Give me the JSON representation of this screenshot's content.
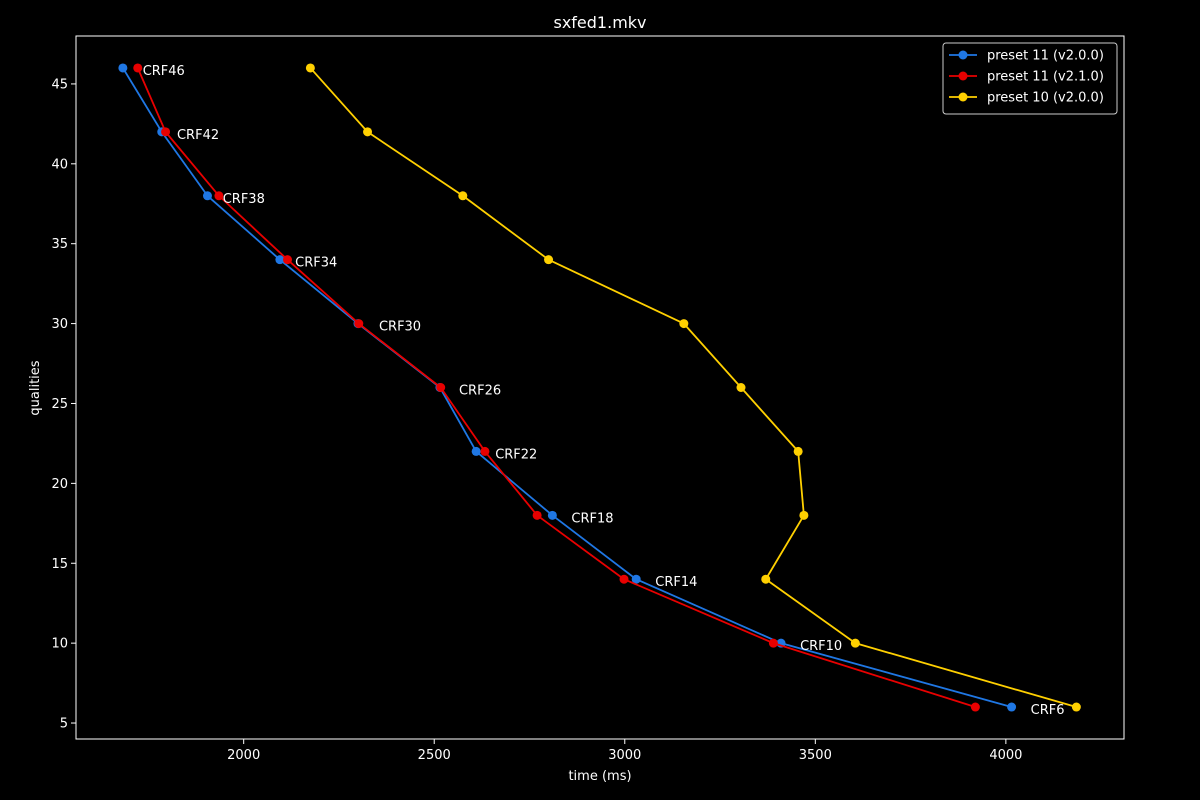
{
  "chart_data": {
    "type": "line",
    "title": "sxfed1.mkv",
    "xlabel": "time (ms)",
    "ylabel": "qualities",
    "xlim": [
      1560,
      4310
    ],
    "ylim": [
      4,
      48
    ],
    "x_ticks": [
      2000,
      2500,
      3000,
      3500,
      4000
    ],
    "y_ticks": [
      5,
      10,
      15,
      20,
      25,
      30,
      35,
      40,
      45
    ],
    "grid": false,
    "legend_position": "top-right",
    "series": [
      {
        "name": "preset 11 (v2.0.0)",
        "color": "#1f77e4",
        "points": [
          {
            "x": 1683,
            "y": 46
          },
          {
            "x": 1785,
            "y": 42
          },
          {
            "x": 1905,
            "y": 38
          },
          {
            "x": 2095,
            "y": 34
          },
          {
            "x": 2300,
            "y": 30
          },
          {
            "x": 2515,
            "y": 26
          },
          {
            "x": 2610,
            "y": 22
          },
          {
            "x": 2810,
            "y": 18
          },
          {
            "x": 3030,
            "y": 14
          },
          {
            "x": 3410,
            "y": 10
          },
          {
            "x": 4015,
            "y": 6
          }
        ]
      },
      {
        "name": "preset 11 (v2.1.0)",
        "color": "#e80000",
        "points": [
          {
            "x": 1722,
            "y": 46
          },
          {
            "x": 1795,
            "y": 42
          },
          {
            "x": 1935,
            "y": 38
          },
          {
            "x": 2115,
            "y": 34
          },
          {
            "x": 2302,
            "y": 30
          },
          {
            "x": 2517,
            "y": 26
          },
          {
            "x": 2633,
            "y": 22
          },
          {
            "x": 2770,
            "y": 18
          },
          {
            "x": 2998,
            "y": 14
          },
          {
            "x": 3390,
            "y": 10
          },
          {
            "x": 3920,
            "y": 6
          }
        ]
      },
      {
        "name": "preset 10 (v2.0.0)",
        "color": "#ffd000",
        "points": [
          {
            "x": 2175,
            "y": 46
          },
          {
            "x": 2325,
            "y": 42
          },
          {
            "x": 2575,
            "y": 38
          },
          {
            "x": 2800,
            "y": 34
          },
          {
            "x": 3155,
            "y": 30
          },
          {
            "x": 3305,
            "y": 26
          },
          {
            "x": 3455,
            "y": 22
          },
          {
            "x": 3470,
            "y": 18
          },
          {
            "x": 3370,
            "y": 14
          },
          {
            "x": 3605,
            "y": 10
          },
          {
            "x": 4185,
            "y": 6
          }
        ]
      }
    ],
    "annotations": [
      {
        "text": "CRF46",
        "x": 1735,
        "y": 46
      },
      {
        "text": "CRF42",
        "x": 1825,
        "y": 42
      },
      {
        "text": "CRF38",
        "x": 1945,
        "y": 38
      },
      {
        "text": "CRF34",
        "x": 2135,
        "y": 34
      },
      {
        "text": "CRF30",
        "x": 2355,
        "y": 30
      },
      {
        "text": "CRF26",
        "x": 2565,
        "y": 26
      },
      {
        "text": "CRF22",
        "x": 2660,
        "y": 22
      },
      {
        "text": "CRF18",
        "x": 2860,
        "y": 18
      },
      {
        "text": "CRF14",
        "x": 3080,
        "y": 14
      },
      {
        "text": "CRF10",
        "x": 3460,
        "y": 10
      },
      {
        "text": "CRF6",
        "x": 4065,
        "y": 6
      }
    ]
  }
}
